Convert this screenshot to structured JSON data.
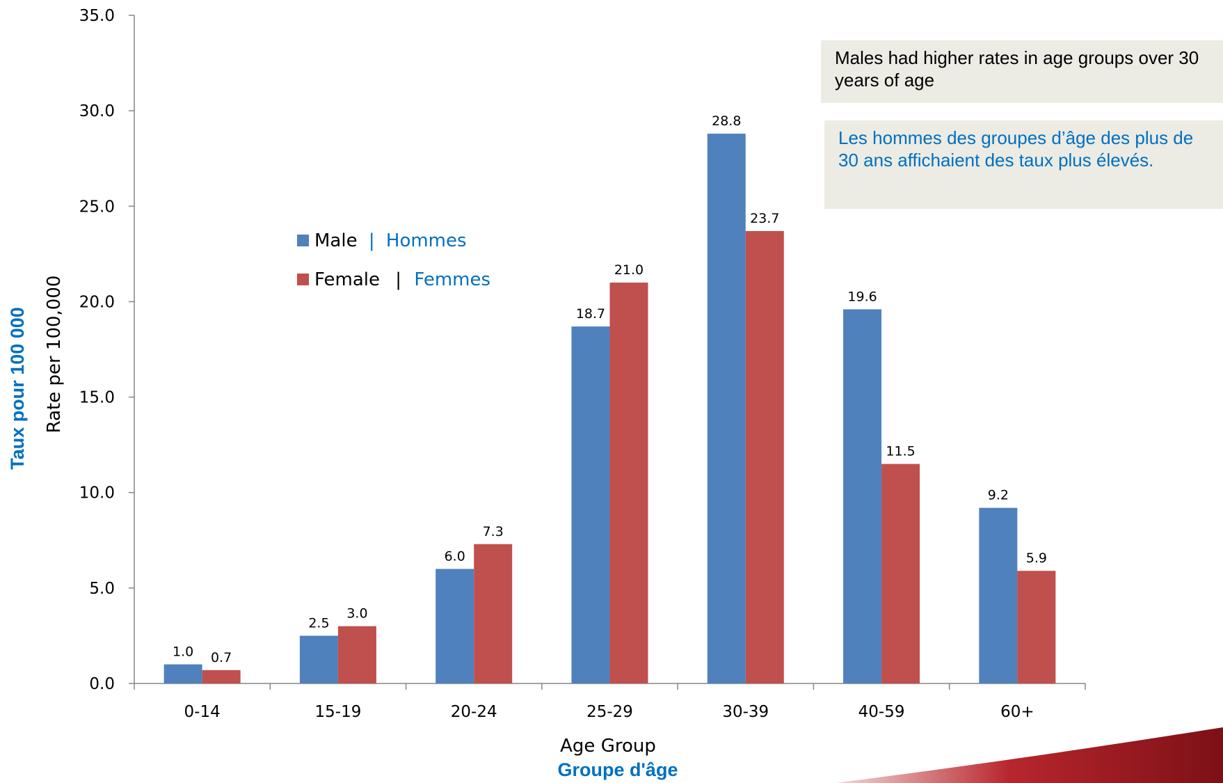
{
  "notes": {
    "english": "Males had higher rates in age groups over 30 years of age",
    "french": "Les hommes des groupes d’âge des plus de 30 ans affichaient des taux plus élevés."
  },
  "chart_data": {
    "type": "bar",
    "categories": [
      "0-14",
      "15-19",
      "20-24",
      "25-29",
      "30-39",
      "40-59",
      "60+"
    ],
    "series": [
      {
        "name": "Male",
        "name_fr": "Hommes",
        "color": "#4f81bd",
        "values": [
          1.0,
          2.5,
          6.0,
          18.7,
          28.8,
          19.6,
          9.2
        ]
      },
      {
        "name": "Female",
        "name_fr": "Femmes",
        "color": "#c0504d",
        "values": [
          0.7,
          3.0,
          7.3,
          21.0,
          23.7,
          11.5,
          5.9
        ]
      }
    ],
    "ylim": [
      0,
      35
    ],
    "yticks": [
      "0.0",
      "5.0",
      "10.0",
      "15.0",
      "20.0",
      "25.0",
      "30.0",
      "35.0"
    ],
    "ylabel": "Rate per 100,000",
    "ylabel_fr": "Taux pour 100 000",
    "xlabel": "Age Group",
    "xlabel_fr": "Groupe d'âge",
    "legend_separator": "|",
    "legend_position": "upper-left inside plot",
    "grid": false,
    "french_text_color": "#0070c0"
  }
}
